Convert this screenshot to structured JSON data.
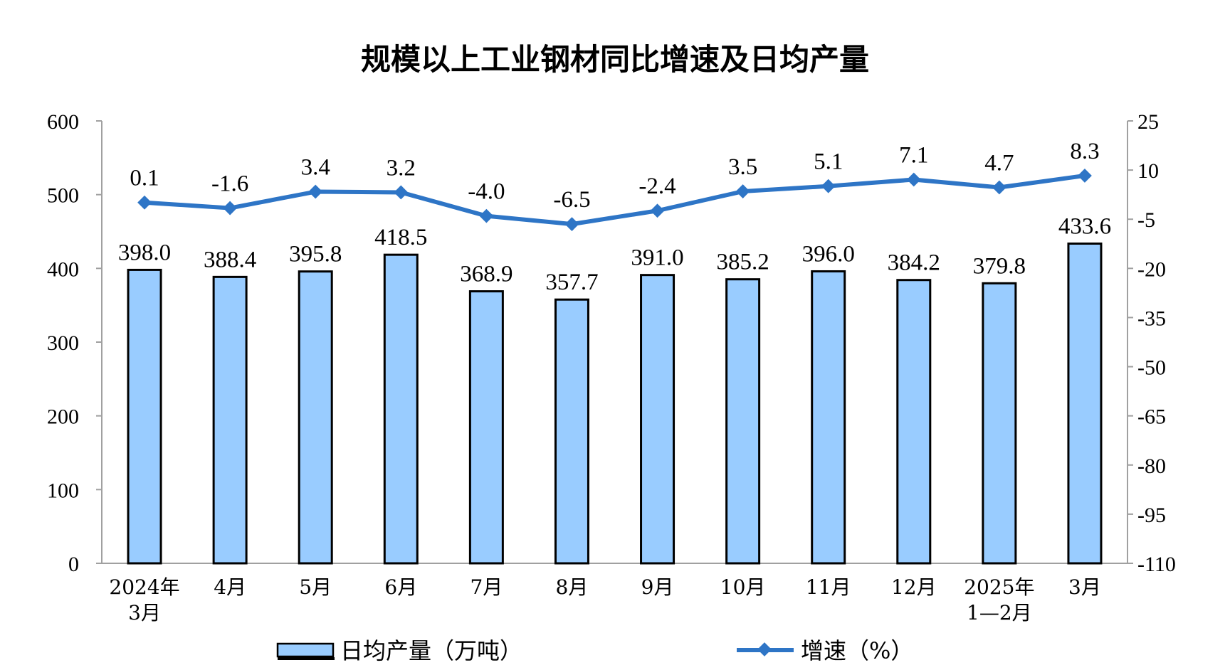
{
  "chart_data": {
    "type": "bar+line",
    "title": "规模以上工业钢材同比增速及日均产量",
    "categories": [
      [
        "2024年",
        "3月"
      ],
      [
        "4月"
      ],
      [
        "5月"
      ],
      [
        "6月"
      ],
      [
        "7月"
      ],
      [
        "8月"
      ],
      [
        "9月"
      ],
      [
        "10月"
      ],
      [
        "11月"
      ],
      [
        "12月"
      ],
      [
        "2025年",
        "1—2月"
      ],
      [
        "3月"
      ]
    ],
    "series": [
      {
        "name": "日均产量（万吨）",
        "type": "bar",
        "axis": "left",
        "color": "#99ccff",
        "values": [
          398.0,
          388.4,
          395.8,
          418.5,
          368.9,
          357.7,
          391.0,
          385.2,
          396.0,
          384.2,
          379.8,
          433.6
        ],
        "labels": [
          "398.0",
          "388.4",
          "395.8",
          "418.5",
          "368.9",
          "357.7",
          "391.0",
          "385.2",
          "396.0",
          "384.2",
          "379.8",
          "433.6"
        ]
      },
      {
        "name": "增速（%）",
        "type": "line",
        "axis": "right",
        "color": "#2e75c6",
        "values": [
          0.1,
          -1.6,
          3.4,
          3.2,
          -4.0,
          -6.5,
          -2.4,
          3.5,
          5.1,
          7.1,
          4.7,
          8.3
        ],
        "labels": [
          "0.1",
          "-1.6",
          "3.4",
          "3.2",
          "-4.0",
          "-6.5",
          "-2.4",
          "3.5",
          "5.1",
          "7.1",
          "4.7",
          "8.3"
        ]
      }
    ],
    "y_left": {
      "min": 0,
      "max": 600,
      "ticks": [
        "0",
        "100",
        "200",
        "300",
        "400",
        "500",
        "600"
      ]
    },
    "y_right": {
      "min": -110,
      "max": 25,
      "ticks": [
        "-110",
        "-95",
        "-80",
        "-65",
        "-50",
        "-35",
        "-20",
        "-5",
        "10",
        "25"
      ]
    },
    "legend_position": "bottom"
  }
}
